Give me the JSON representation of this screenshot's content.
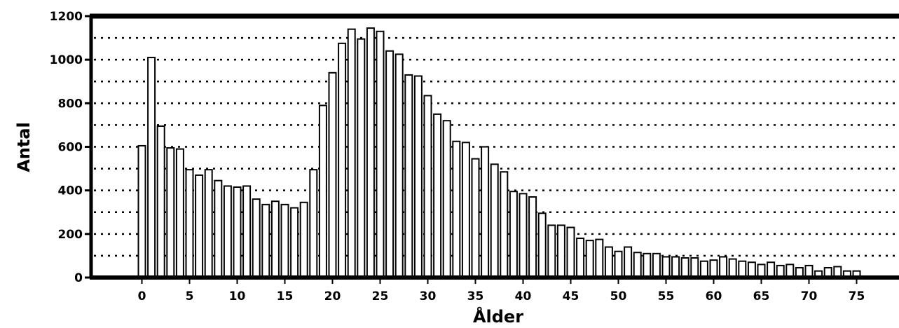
{
  "chart_data": {
    "type": "bar",
    "xlabel": "Ålder",
    "ylabel": "Antal",
    "ylim": [
      0,
      1200
    ],
    "yticks": [
      0,
      200,
      400,
      600,
      800,
      1000,
      1200
    ],
    "xticks": [
      0,
      5,
      10,
      15,
      20,
      25,
      30,
      35,
      40,
      45,
      50,
      55,
      60,
      65,
      70,
      75
    ],
    "grid": "dotted-horizontal-every-100",
    "x": [
      0,
      1,
      2,
      3,
      4,
      5,
      6,
      7,
      8,
      9,
      10,
      11,
      12,
      13,
      14,
      15,
      16,
      17,
      18,
      19,
      20,
      21,
      22,
      23,
      24,
      25,
      26,
      27,
      28,
      29,
      30,
      31,
      32,
      33,
      34,
      35,
      36,
      37,
      38,
      39,
      40,
      41,
      42,
      43,
      44,
      45,
      46,
      47,
      48,
      49,
      50,
      51,
      52,
      53,
      54,
      55,
      56,
      57,
      58,
      59,
      60,
      61,
      62,
      63,
      64,
      65,
      66,
      67,
      68,
      69,
      70,
      71,
      72,
      73,
      74,
      75
    ],
    "values": [
      605,
      1010,
      695,
      595,
      590,
      495,
      470,
      495,
      445,
      420,
      415,
      420,
      360,
      335,
      350,
      335,
      320,
      345,
      495,
      790,
      940,
      1075,
      1140,
      1095,
      1145,
      1130,
      1040,
      1025,
      930,
      925,
      835,
      750,
      720,
      625,
      620,
      545,
      600,
      520,
      485,
      395,
      385,
      370,
      295,
      240,
      240,
      230,
      180,
      170,
      175,
      140,
      120,
      140,
      115,
      110,
      110,
      95,
      95,
      90,
      90,
      75,
      80,
      95,
      85,
      75,
      70,
      60,
      70,
      55,
      60,
      45,
      55,
      30,
      45,
      50,
      30,
      30
    ],
    "colors": {
      "bar_fill": "#ffffff",
      "bar_stroke": "#000000",
      "grid": "#000000",
      "axis": "#000000"
    }
  }
}
